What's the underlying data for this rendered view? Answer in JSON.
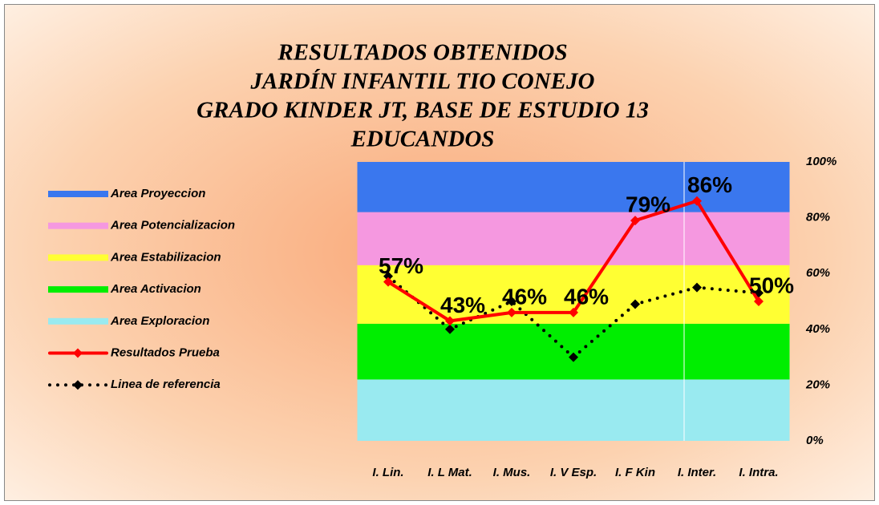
{
  "chart_data": {
    "type": "line",
    "title": [
      "RESULTADOS   OBTENIDOS",
      "JARDÍN INFANTIL  TIO CONEJO",
      "GRADO   KINDER JT,  BASE  DE  ESTUDIO  13",
      "EDUCANDOS"
    ],
    "categories": [
      "I. Lin.",
      "I. L Mat.",
      "I. Mus.",
      "I. V Esp.",
      "I. F Kin",
      "I. Inter.",
      "I. Intra."
    ],
    "bands": [
      {
        "name": "Area Exploracion",
        "color": "#99eaf0",
        "value": 22
      },
      {
        "name": "Area Activacion",
        "color": "#00ee00",
        "value": 20
      },
      {
        "name": "Area Estabilizacion",
        "color": "#ffff33",
        "value": 21
      },
      {
        "name": "Area Potencializacion",
        "color": "#f598e0",
        "value": 19
      },
      {
        "name": "Area Proyeccion",
        "color": "#3a77ee",
        "value": 18
      }
    ],
    "series": [
      {
        "name": "Resultados Prueba",
        "color": "#ff0000",
        "style": "solid",
        "values": [
          57,
          43,
          46,
          46,
          79,
          86,
          50
        ],
        "value_labels": [
          "57%",
          "43%",
          "46%",
          "46%",
          "79%",
          "86%",
          "50%"
        ]
      },
      {
        "name": "Linea de referencia",
        "color": "#000000",
        "style": "dotted",
        "values": [
          59,
          40,
          50,
          30,
          49,
          55,
          53
        ]
      }
    ],
    "ylim": [
      0,
      100
    ],
    "yticks": [
      {
        "value": 0,
        "label": "0%"
      },
      {
        "value": 20,
        "label": "20%"
      },
      {
        "value": 40,
        "label": "40%"
      },
      {
        "value": 60,
        "label": "60%"
      },
      {
        "value": 80,
        "label": "80%"
      },
      {
        "value": 100,
        "label": "100%"
      }
    ]
  }
}
